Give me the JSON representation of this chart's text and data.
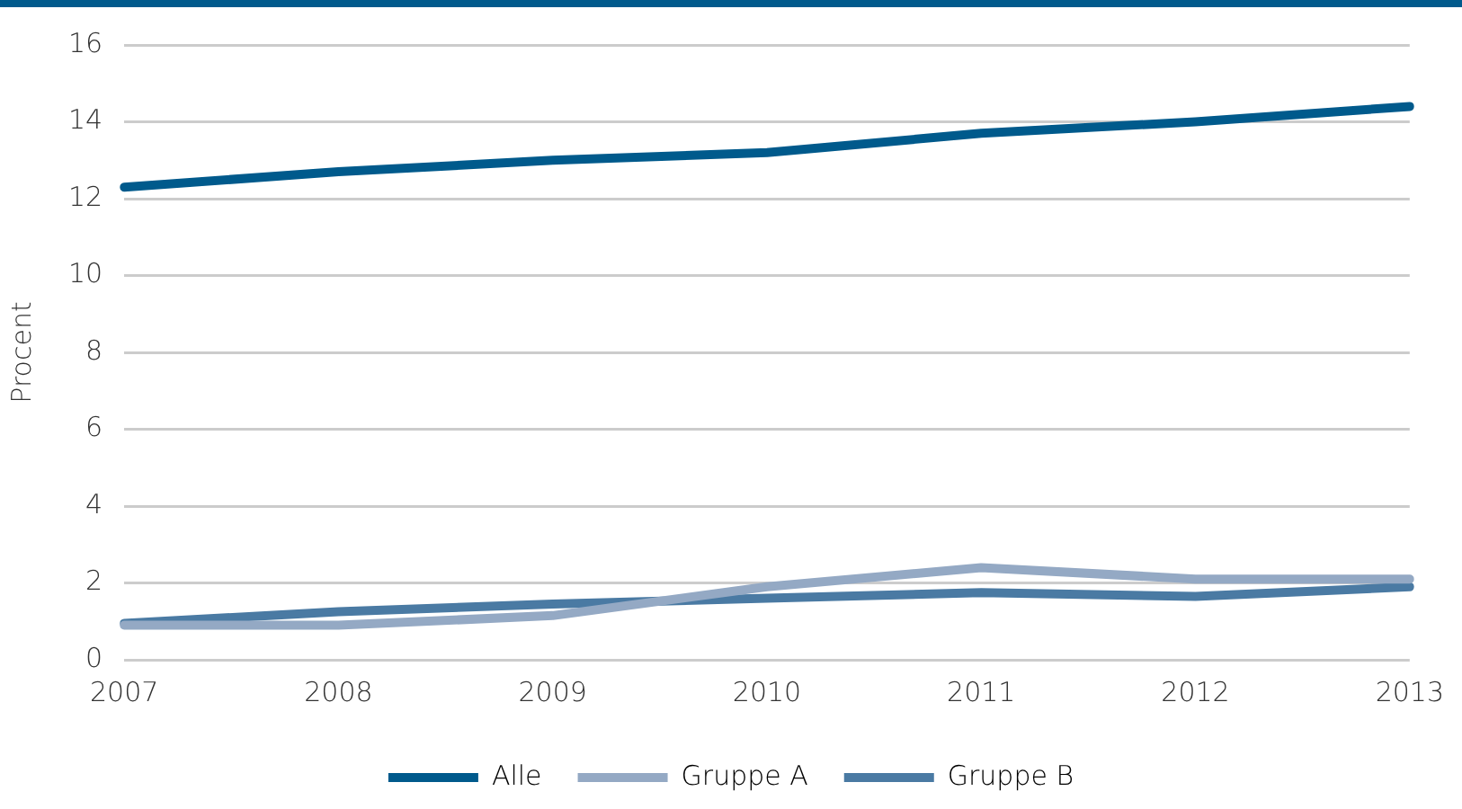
{
  "chart_data": {
    "type": "line",
    "ylabel": "Procent",
    "categories": [
      "2007",
      "2008",
      "2009",
      "2010",
      "2011",
      "2012",
      "2013"
    ],
    "series": [
      {
        "name": "Alle",
        "color": "#005a8c",
        "values": [
          12.3,
          12.7,
          13.0,
          13.2,
          13.7,
          14.0,
          14.4
        ]
      },
      {
        "name": "Gruppe A",
        "color": "#94a9c4",
        "values": [
          0.9,
          0.9,
          1.15,
          1.9,
          2.4,
          2.1,
          2.1
        ]
      },
      {
        "name": "Gruppe B",
        "color": "#4a7aa3",
        "values": [
          0.95,
          1.25,
          1.45,
          1.6,
          1.75,
          1.65,
          1.9
        ]
      }
    ],
    "ylim": [
      0,
      16
    ],
    "yticks": [
      0,
      2,
      4,
      6,
      8,
      10,
      12,
      14,
      16
    ],
    "grid": "y",
    "legend": "bottom",
    "marker": "none",
    "line_style": "solid"
  }
}
